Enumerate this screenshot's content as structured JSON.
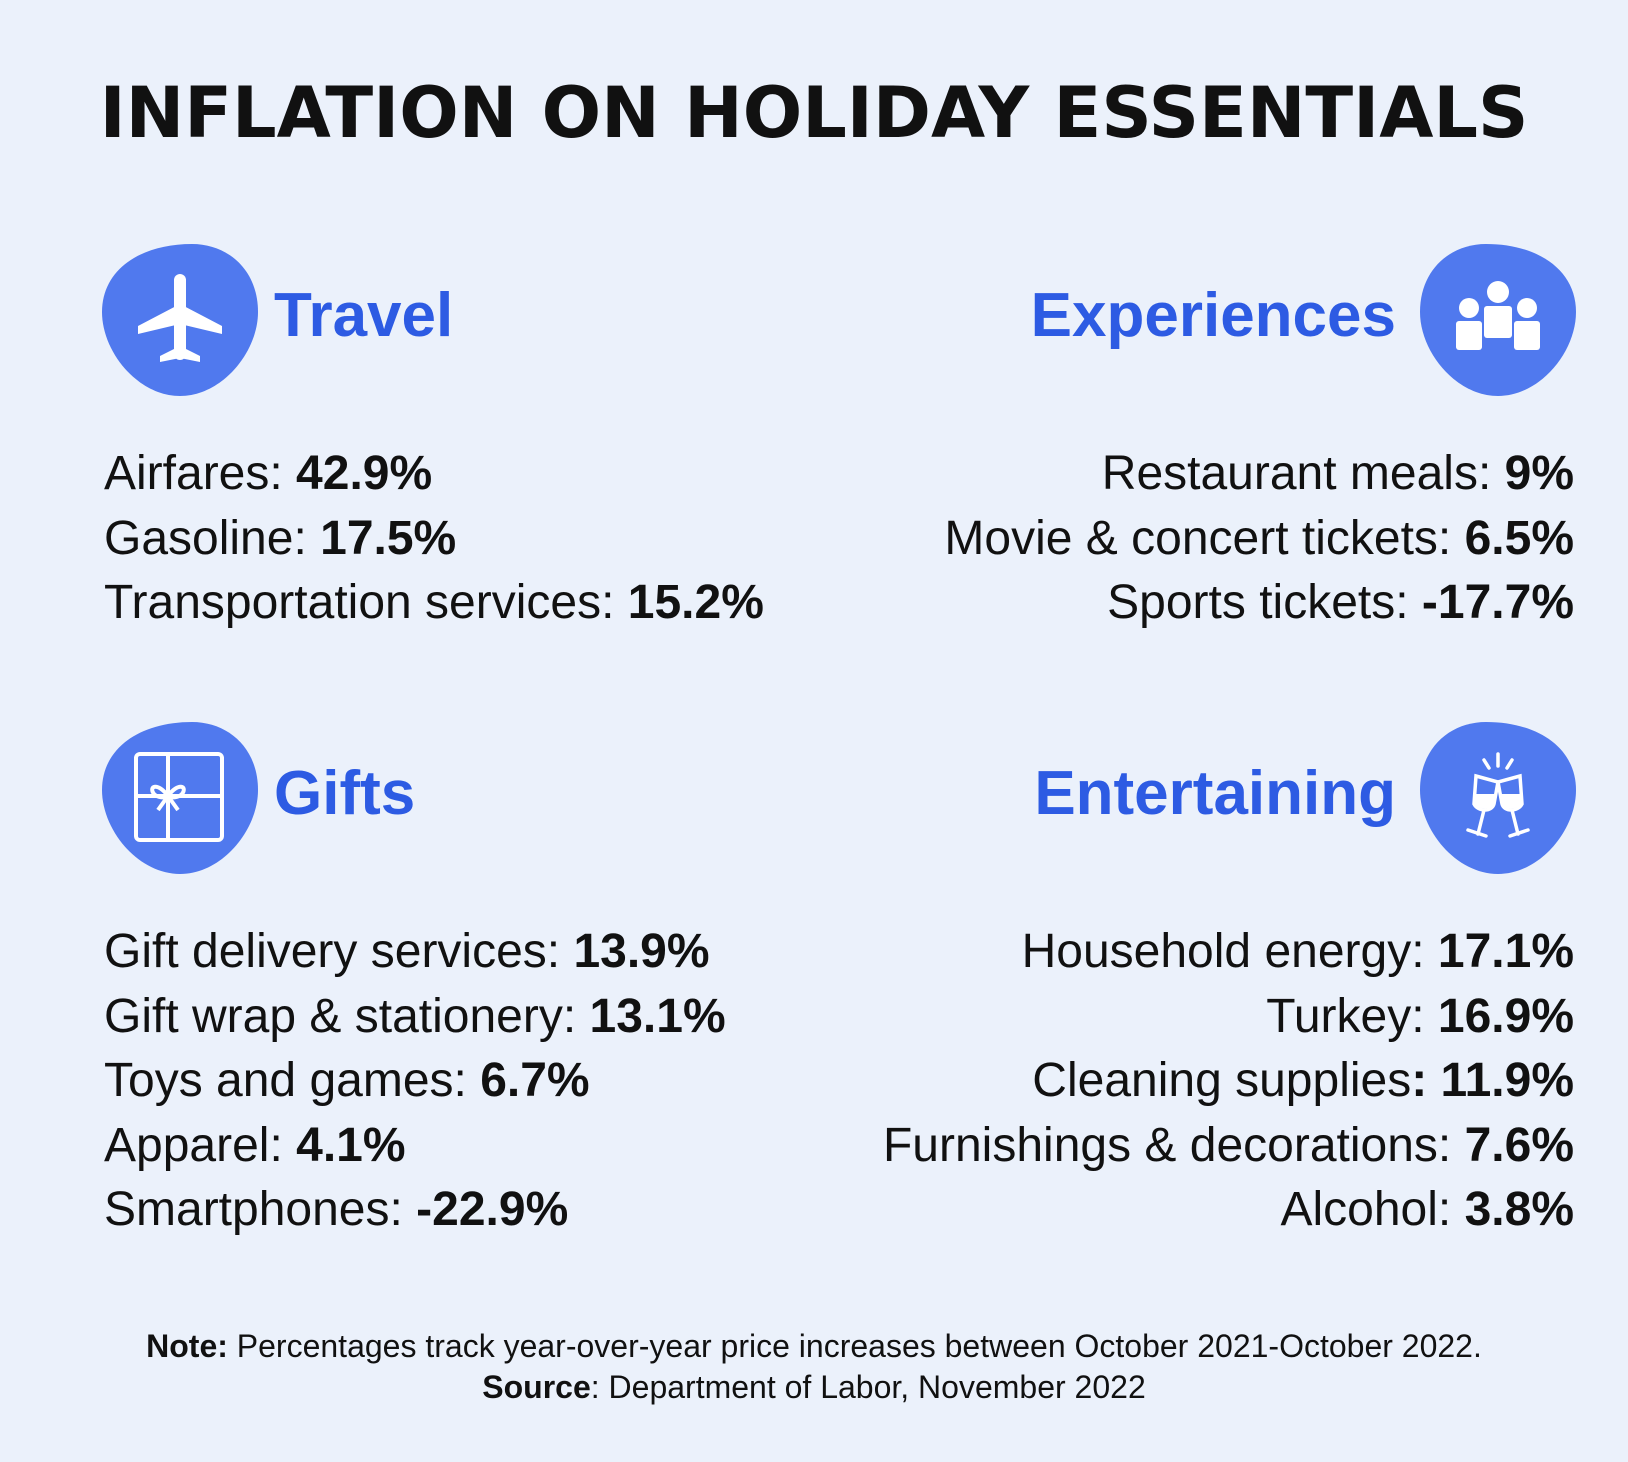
{
  "title": "INFLATION ON HOLIDAY ESSENTIALS",
  "colors": {
    "accent": "#2d5be3",
    "badge": "#5079ee",
    "background": "#ebf1fb",
    "text": "#111111"
  },
  "sections": {
    "travel": {
      "title": "Travel",
      "icon": "airplane-icon",
      "items": [
        {
          "label": "Airfares: ",
          "value": "42.9%"
        },
        {
          "label": "Gasoline: ",
          "value": "17.5%"
        },
        {
          "label": "Transportation services: ",
          "value": "15.2%"
        }
      ]
    },
    "experiences": {
      "title": "Experiences",
      "icon": "people-group-icon",
      "items": [
        {
          "label": "Restaurant meals: ",
          "value": "9%"
        },
        {
          "label": "Movie & concert tickets: ",
          "value": "6.5%"
        },
        {
          "label": "Sports tickets: ",
          "value": "-17.7%"
        }
      ]
    },
    "gifts": {
      "title": "Gifts",
      "icon": "gift-box-icon",
      "items": [
        {
          "label": "Gift delivery services: ",
          "value": "13.9%"
        },
        {
          "label": "Gift wrap & stationery: ",
          "value": "13.1%"
        },
        {
          "label": "Toys and games: ",
          "value": "6.7%"
        },
        {
          "label": "Apparel: ",
          "value": "4.1%"
        },
        {
          "label": "Smartphones: ",
          "value": "-22.9%"
        }
      ]
    },
    "entertaining": {
      "title": "Entertaining",
      "icon": "wine-glasses-toast-icon",
      "items": [
        {
          "label": "Household energy: ",
          "value": "17.1%"
        },
        {
          "label": "Turkey: ",
          "value": "16.9%"
        },
        {
          "label": "Cleaning supplies",
          "value": ": 11.9%"
        },
        {
          "label": "Furnishings & decorations: ",
          "value": "7.6%"
        },
        {
          "label": "Alcohol: ",
          "value": "3.8%"
        }
      ]
    }
  },
  "footer": {
    "note_label": "Note:",
    "note_text": " Percentages track year-over-year price increases between October 2021-October 2022.",
    "source_label": "Source",
    "source_text": ": Department of Labor, November 2022"
  }
}
